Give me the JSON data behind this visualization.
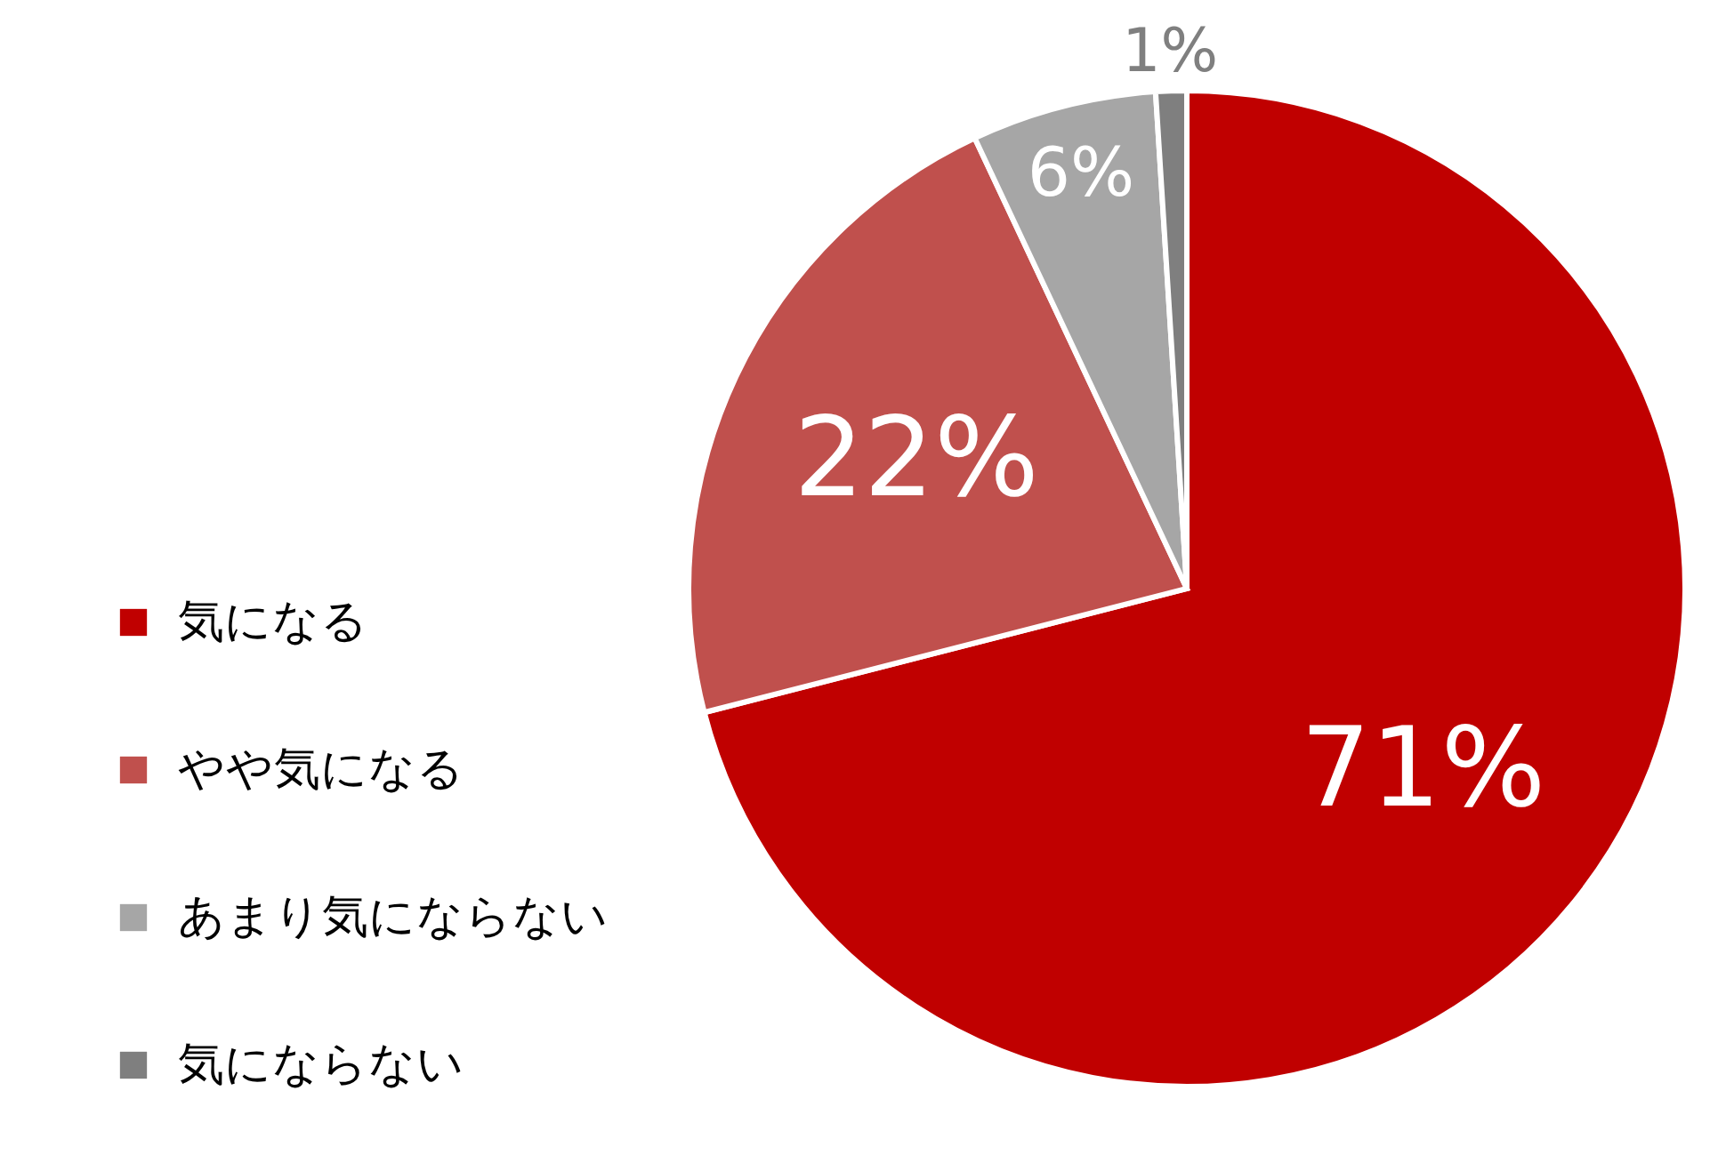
{
  "chart_data": {
    "type": "pie",
    "categories": [
      "気になる",
      "やや気になる",
      "あまり気にならない",
      "気にならない"
    ],
    "values": [
      71,
      22,
      6,
      1
    ],
    "colors": [
      "#c00000",
      "#c0504d",
      "#a6a6a6",
      "#7f7f7f"
    ],
    "value_labels": [
      "71%",
      "22%",
      "6%",
      "1%"
    ],
    "legend": "left"
  }
}
